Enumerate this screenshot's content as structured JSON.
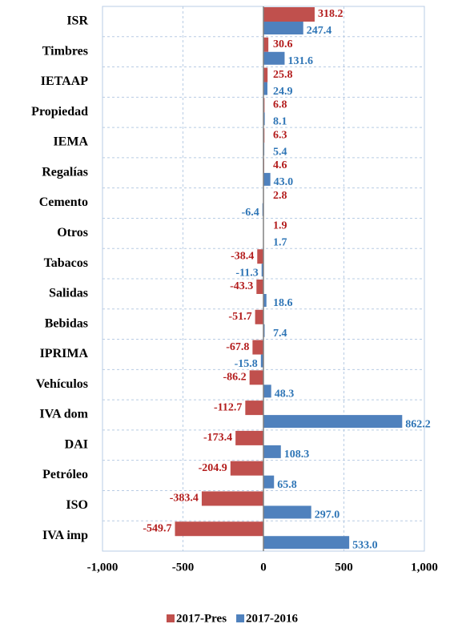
{
  "chart_data": {
    "type": "hbar",
    "categories": [
      "ISR",
      "Timbres",
      "IETAAP",
      "Propiedad",
      "IEMA",
      "Regalías",
      "Cemento",
      "Otros",
      "Tabacos",
      "Salidas",
      "Bebidas",
      "IPRIMA",
      "Vehículos",
      "IVA dom",
      "DAI",
      "Petróleo",
      "ISO",
      "IVA imp"
    ],
    "series": [
      {
        "name": "2017-Pres",
        "color": "#c0504d",
        "label_color": "#b31c1c",
        "values": [
          318.2,
          30.6,
          25.8,
          6.8,
          6.3,
          4.6,
          2.8,
          1.9,
          -38.4,
          -43.3,
          -51.7,
          -67.8,
          -86.2,
          -112.7,
          -173.4,
          -204.9,
          -383.4,
          -549.7
        ],
        "value_labels": [
          "318.2",
          "30.6",
          "25.8",
          "6.8",
          "6.3",
          "4.6",
          "2.8",
          "1.9",
          "-38.4",
          "-43.3",
          "-51.7",
          "-67.8",
          "-86.2",
          "-112.7",
          "-173.4",
          "-204.9",
          "-383.4",
          "-549.7"
        ]
      },
      {
        "name": "2017-2016",
        "color": "#4f81bd",
        "label_color": "#2e75b6",
        "values": [
          247.4,
          131.6,
          24.9,
          8.1,
          5.4,
          43,
          -6.4,
          1.7,
          -11.3,
          18.6,
          7.4,
          -15.8,
          48.3,
          862.2,
          108.3,
          65.8,
          297,
          533
        ],
        "value_labels": [
          "247.4",
          "131.6",
          "24.9",
          "8.1",
          "5.4",
          "43.0",
          "-6.4",
          "1.7",
          "-11.3",
          "18.6",
          "7.4",
          "-15.8",
          "48.3",
          "862.2",
          "108.3",
          "65.8",
          "297.0",
          "533.0"
        ]
      }
    ],
    "xlim": [
      -1000,
      1000
    ],
    "xticks": [
      {
        "value": -1000,
        "label": "-1,000"
      },
      -500,
      0,
      500,
      {
        "value": 1000,
        "label": "1,000"
      }
    ],
    "grid": true,
    "legend": "bottom"
  }
}
